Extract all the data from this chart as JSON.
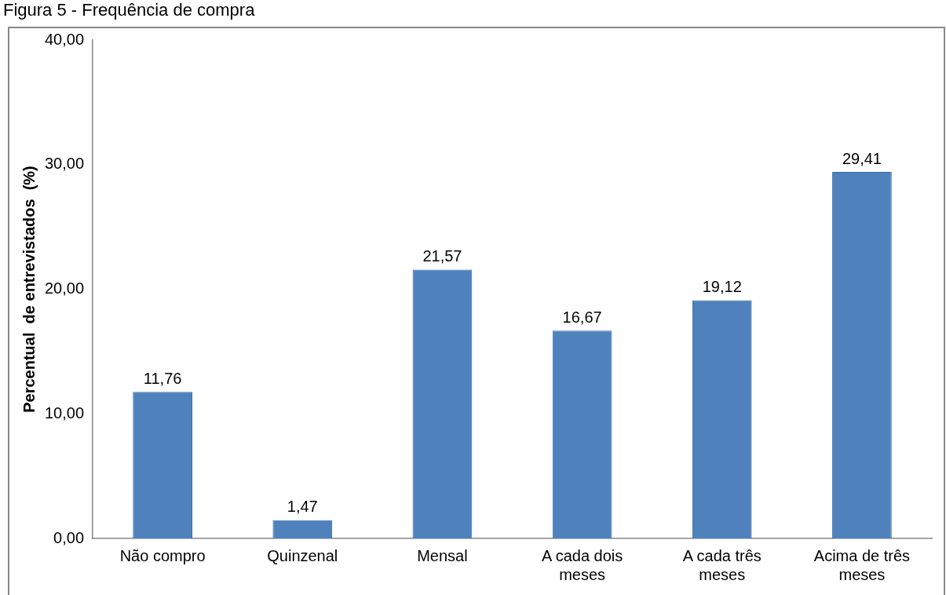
{
  "chart_data": {
    "type": "bar",
    "title": "Figura 5 - Frequência de compra",
    "ylabel": "Percentual  de entrevistados  (%)",
    "categories": [
      "Não compro",
      "Quinzenal",
      "Mensal",
      "A cada dois meses",
      "A cada três meses",
      "Acima de três meses"
    ],
    "values": [
      11.76,
      1.47,
      21.57,
      16.67,
      19.12,
      29.41
    ],
    "color": "#4f81bd",
    "value_labels": [
      "11,76",
      "1,47",
      "21,57",
      "16,67",
      "19,12",
      "29,41"
    ],
    "ylim": [
      0,
      40
    ],
    "yticks": [
      {
        "value": 0,
        "label": "0,00"
      },
      {
        "value": 10,
        "label": "10,00"
      },
      {
        "value": 20,
        "label": "20,00"
      },
      {
        "value": 30,
        "label": "30,00"
      },
      {
        "value": 40,
        "label": "40,00"
      }
    ],
    "grid": false,
    "legend": false
  }
}
